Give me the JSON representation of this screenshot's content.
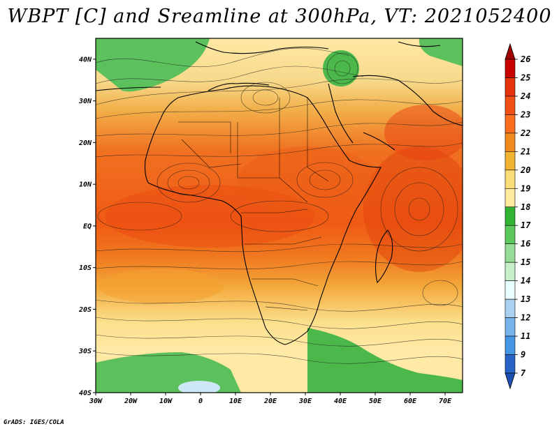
{
  "title": "WBPT [C] and Sreamline at 300hPa, VT: 2021052400",
  "footer": "GrADS: IGES/COLA",
  "map": {
    "lat_range": [
      -40,
      45
    ],
    "lon_range": [
      -30,
      75
    ],
    "lat_labels": [
      {
        "lat": 40,
        "text": "40N"
      },
      {
        "lat": 30,
        "text": "30N"
      },
      {
        "lat": 20,
        "text": "20N"
      },
      {
        "lat": 10,
        "text": "10N"
      },
      {
        "lat": 0,
        "text": "EQ"
      },
      {
        "lat": -10,
        "text": "10S"
      },
      {
        "lat": -20,
        "text": "20S"
      },
      {
        "lat": -30,
        "text": "30S"
      },
      {
        "lat": -40,
        "text": "40S"
      }
    ],
    "lon_labels": [
      {
        "lon": -30,
        "text": "30W"
      },
      {
        "lon": -20,
        "text": "20W"
      },
      {
        "lon": -10,
        "text": "10W"
      },
      {
        "lon": 0,
        "text": "0"
      },
      {
        "lon": 10,
        "text": "10E"
      },
      {
        "lon": 20,
        "text": "20E"
      },
      {
        "lon": 30,
        "text": "30E"
      },
      {
        "lon": 40,
        "text": "40E"
      },
      {
        "lon": 50,
        "text": "50E"
      },
      {
        "lon": 60,
        "text": "60E"
      },
      {
        "lon": 70,
        "text": "70E"
      }
    ]
  },
  "colorbar": {
    "levels": [
      "26",
      "25",
      "24",
      "23",
      "22",
      "21",
      "20",
      "19",
      "18",
      "17",
      "16",
      "15",
      "14",
      "13",
      "12",
      "11",
      "9",
      "7"
    ],
    "colors": [
      "#a00000",
      "#c80000",
      "#e6320a",
      "#f05014",
      "#fa6e1e",
      "#f08c1e",
      "#f0b432",
      "#fadc78",
      "#ffeb9b",
      "#32b432",
      "#5ac85a",
      "#96dc96",
      "#c8f0c8",
      "#eaffff",
      "#aad2f0",
      "#78b4eb",
      "#4696e6",
      "#2864c8",
      "#1e50b4"
    ]
  }
}
